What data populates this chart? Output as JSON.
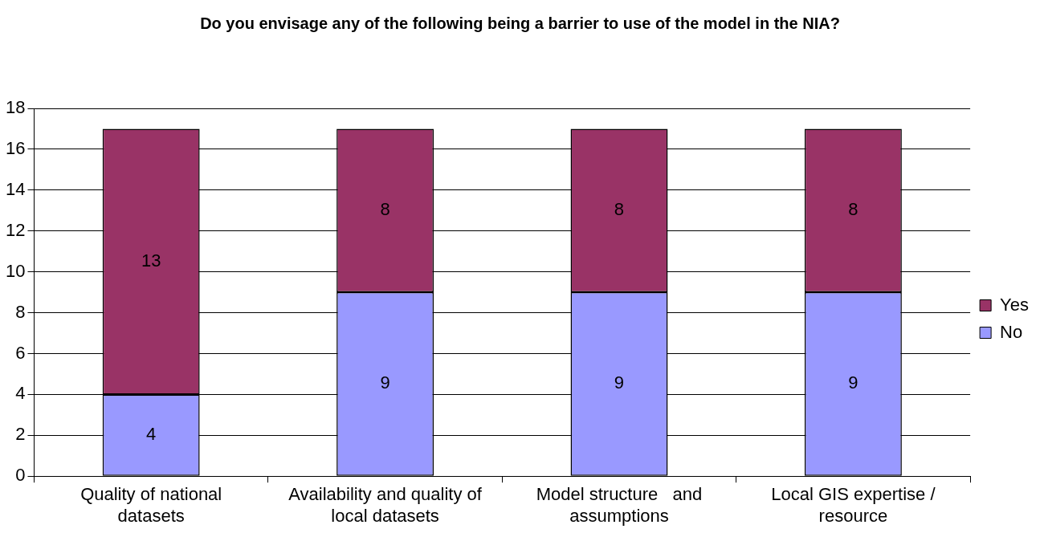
{
  "chart_data": {
    "type": "bar",
    "title": "Do you envisage any of the following being a barrier to use of the model in the NIA?",
    "categories": [
      "Quality of national datasets",
      "Availability and quality of local datasets",
      "Model structure   and assumptions",
      "Local GIS expertise / resource"
    ],
    "series": [
      {
        "name": "No",
        "color": "#9999ff",
        "values": [
          4,
          9,
          9,
          9
        ]
      },
      {
        "name": "Yes",
        "color": "#993366",
        "values": [
          13,
          8,
          8,
          8
        ]
      }
    ],
    "stacked": true,
    "ylim": [
      0,
      18
    ],
    "yticks": [
      0,
      2,
      4,
      6,
      8,
      10,
      12,
      14,
      16,
      18
    ],
    "grid": "y",
    "legend": "right",
    "data_labels": true
  }
}
